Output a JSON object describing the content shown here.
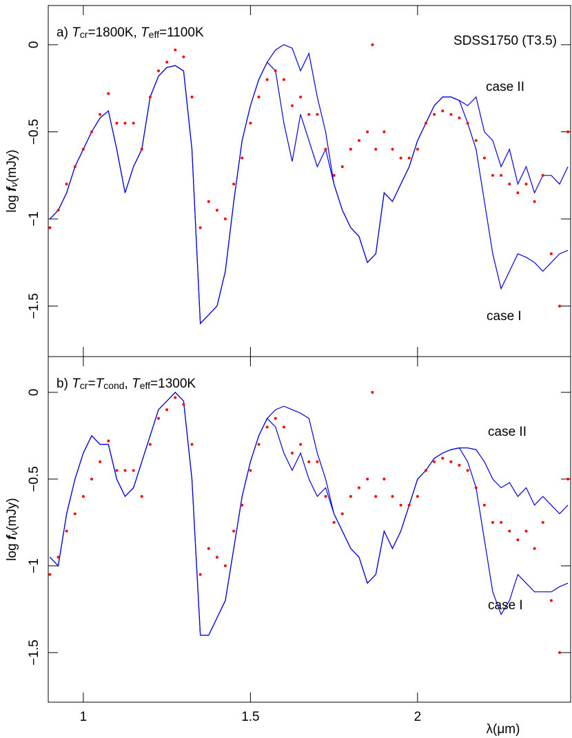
{
  "chart_data": [
    {
      "type": "line",
      "title_parts": [
        {
          "text": "a) "
        },
        {
          "text": "T",
          "style": "italic"
        },
        {
          "text": "cr",
          "style": "sub"
        },
        {
          "text": "=1800K, "
        },
        {
          "text": "T",
          "style": "italic"
        },
        {
          "text": "eff",
          "style": "sub"
        },
        {
          "text": "=1100K"
        }
      ],
      "annotation": "SDSS1750 (T3.5)",
      "ylabel_parts": [
        {
          "text": "log "
        },
        {
          "text": "f",
          "style": "italic-bold"
        },
        {
          "text": "ν",
          "style": "sub-italic"
        },
        {
          "text": "(mJy)"
        }
      ],
      "xlim": [
        0.895,
        2.458
      ],
      "ylim": [
        -1.79,
        0.225
      ],
      "yticks": [
        0,
        {
          "value": -0.5,
          "label": "−0.5"
        },
        {
          "value": -1,
          "label": "−1"
        },
        {
          "value": -1.5,
          "label": "−1.5"
        }
      ],
      "x": [
        0.9,
        0.925,
        0.95,
        0.975,
        1.0,
        1.025,
        1.05,
        1.075,
        1.1,
        1.125,
        1.15,
        1.175,
        1.2,
        1.225,
        1.25,
        1.275,
        1.3,
        1.325,
        1.35,
        1.375,
        1.4,
        1.425,
        1.45,
        1.475,
        1.5,
        1.525,
        1.55,
        1.575,
        1.6,
        1.625,
        1.65,
        1.675,
        1.7,
        1.725,
        1.75,
        1.775,
        1.8,
        1.825,
        1.85,
        1.875,
        1.9,
        1.925,
        1.95,
        1.975,
        2.0,
        2.025,
        2.05,
        2.075,
        2.1,
        2.125,
        2.15,
        2.175,
        2.2,
        2.225,
        2.25,
        2.275,
        2.3,
        2.325,
        2.35,
        2.375,
        2.4,
        2.425,
        2.45
      ],
      "series": [
        {
          "name": "case II",
          "color": "#0000dd",
          "values": [
            -1.0,
            -0.95,
            -0.85,
            -0.7,
            -0.6,
            -0.5,
            -0.42,
            -0.38,
            -0.6,
            -0.85,
            -0.7,
            -0.6,
            -0.3,
            -0.18,
            -0.13,
            -0.12,
            -0.15,
            -0.6,
            -1.6,
            -1.55,
            -1.5,
            -1.3,
            -0.9,
            -0.55,
            -0.35,
            -0.2,
            -0.1,
            -0.03,
            0.0,
            -0.02,
            -0.15,
            -0.05,
            -0.3,
            -0.5,
            -0.8,
            -0.95,
            -1.05,
            -1.1,
            -1.25,
            -1.2,
            -0.85,
            -0.9,
            -0.8,
            -0.7,
            -0.55,
            -0.45,
            -0.35,
            -0.3,
            -0.3,
            -0.32,
            -0.35,
            -0.3,
            -0.5,
            -0.55,
            -0.7,
            -0.6,
            -0.8,
            -0.7,
            -0.85,
            -0.75,
            -0.75,
            -0.8,
            -0.7
          ]
        },
        {
          "name": "case I",
          "color": "#0000dd",
          "values": [
            -1.0,
            -0.95,
            -0.85,
            -0.7,
            -0.6,
            -0.5,
            -0.42,
            -0.38,
            -0.6,
            -0.85,
            -0.7,
            -0.6,
            -0.3,
            -0.18,
            -0.13,
            -0.12,
            -0.15,
            -0.6,
            -1.6,
            -1.55,
            -1.5,
            -1.3,
            -0.9,
            -0.55,
            -0.35,
            -0.2,
            -0.1,
            -0.15,
            -0.45,
            -0.67,
            -0.4,
            -0.55,
            -0.7,
            -0.6,
            -0.8,
            -0.95,
            -1.05,
            -1.1,
            -1.25,
            -1.2,
            -0.85,
            -0.9,
            -0.8,
            -0.7,
            -0.55,
            -0.45,
            -0.35,
            -0.3,
            -0.3,
            -0.32,
            -0.45,
            -0.6,
            -0.9,
            -1.2,
            -1.4,
            -1.3,
            -1.2,
            -1.22,
            -1.25,
            -1.3,
            -1.25,
            -1.2,
            -1.18
          ]
        },
        {
          "color": "#ff0000",
          "marker": "dot",
          "x": [
            0.9,
            0.925,
            0.95,
            0.975,
            1.0,
            1.025,
            1.05,
            1.075,
            1.1,
            1.125,
            1.15,
            1.175,
            1.2,
            1.225,
            1.25,
            1.275,
            1.3,
            1.325,
            1.35,
            1.375,
            1.4,
            1.425,
            1.45,
            1.475,
            1.5,
            1.525,
            1.55,
            1.575,
            1.6,
            1.625,
            1.65,
            1.675,
            1.7,
            1.725,
            1.75,
            1.775,
            1.8,
            1.825,
            1.85,
            1.865,
            1.875,
            1.9,
            1.925,
            1.95,
            1.975,
            2.0,
            2.025,
            2.05,
            2.075,
            2.1,
            2.125,
            2.15,
            2.175,
            2.2,
            2.225,
            2.25,
            2.275,
            2.3,
            2.325,
            2.35,
            2.375,
            2.4,
            2.425,
            2.45
          ],
          "values": [
            -1.05,
            -0.95,
            -0.8,
            -0.7,
            -0.6,
            -0.5,
            -0.4,
            -0.28,
            -0.45,
            -0.45,
            -0.45,
            -0.6,
            -0.3,
            -0.15,
            -0.1,
            -0.03,
            -0.07,
            -0.3,
            -1.05,
            -0.9,
            -0.95,
            -1.0,
            -0.8,
            -0.65,
            -0.45,
            -0.3,
            -0.2,
            -0.15,
            -0.2,
            -0.35,
            -0.3,
            -0.4,
            -0.4,
            -0.6,
            -0.75,
            -0.7,
            -0.6,
            -0.55,
            -0.5,
            0.0,
            -0.6,
            -0.5,
            -0.6,
            -0.65,
            -0.65,
            -0.6,
            -0.45,
            -0.4,
            -0.38,
            -0.4,
            -0.42,
            -0.45,
            -0.55,
            -0.65,
            -0.75,
            -0.75,
            -0.8,
            -0.85,
            -0.8,
            -0.9,
            -0.75,
            -1.2,
            -1.5,
            -0.5
          ]
        }
      ]
    },
    {
      "type": "line",
      "title_parts": [
        {
          "text": "b) "
        },
        {
          "text": "T",
          "style": "italic"
        },
        {
          "text": "cr",
          "style": "sub"
        },
        {
          "text": "="
        },
        {
          "text": "T",
          "style": "italic"
        },
        {
          "text": "cond",
          "style": "sub"
        },
        {
          "text": ", "
        },
        {
          "text": "T",
          "style": "italic"
        },
        {
          "text": "eff",
          "style": "sub"
        },
        {
          "text": "=1300K"
        }
      ],
      "ylabel_parts": [
        {
          "text": "log "
        },
        {
          "text": "f",
          "style": "italic-bold"
        },
        {
          "text": "ν",
          "style": "sub-italic"
        },
        {
          "text": "(mJy)"
        }
      ],
      "xlabel": "λ(μm)",
      "xlim": [
        0.895,
        2.458
      ],
      "ylim": [
        -1.786,
        0.206
      ],
      "xticks": [
        1,
        1.5,
        2
      ],
      "yticks": [
        0,
        {
          "value": -0.5,
          "label": "−0.5"
        },
        {
          "value": -1,
          "label": "−1"
        },
        {
          "value": -1.5,
          "label": "−1.5"
        }
      ],
      "x": [
        0.9,
        0.925,
        0.95,
        0.975,
        1.0,
        1.025,
        1.05,
        1.075,
        1.1,
        1.125,
        1.15,
        1.175,
        1.2,
        1.225,
        1.25,
        1.275,
        1.3,
        1.325,
        1.35,
        1.375,
        1.4,
        1.425,
        1.45,
        1.475,
        1.5,
        1.525,
        1.55,
        1.575,
        1.6,
        1.625,
        1.65,
        1.675,
        1.7,
        1.725,
        1.75,
        1.775,
        1.8,
        1.825,
        1.85,
        1.875,
        1.9,
        1.925,
        1.95,
        1.975,
        2.0,
        2.025,
        2.05,
        2.075,
        2.1,
        2.125,
        2.15,
        2.175,
        2.2,
        2.225,
        2.25,
        2.275,
        2.3,
        2.325,
        2.35,
        2.375,
        2.4,
        2.425,
        2.45
      ],
      "series": [
        {
          "name": "case II",
          "color": "#0000dd",
          "values": [
            -0.95,
            -1.0,
            -0.7,
            -0.5,
            -0.35,
            -0.25,
            -0.3,
            -0.3,
            -0.5,
            -0.6,
            -0.55,
            -0.4,
            -0.25,
            -0.1,
            -0.05,
            0.0,
            -0.05,
            -0.5,
            -1.4,
            -1.4,
            -1.3,
            -1.2,
            -0.9,
            -0.6,
            -0.4,
            -0.25,
            -0.15,
            -0.1,
            -0.08,
            -0.1,
            -0.12,
            -0.15,
            -0.35,
            -0.5,
            -0.7,
            -0.8,
            -0.9,
            -0.95,
            -1.1,
            -1.05,
            -0.8,
            -0.9,
            -0.8,
            -0.65,
            -0.5,
            -0.45,
            -0.38,
            -0.35,
            -0.33,
            -0.32,
            -0.32,
            -0.33,
            -0.4,
            -0.5,
            -0.55,
            -0.52,
            -0.6,
            -0.55,
            -0.65,
            -0.6,
            -0.65,
            -0.7,
            -0.65
          ]
        },
        {
          "name": "case I",
          "color": "#0000dd",
          "values": [
            -0.95,
            -1.0,
            -0.7,
            -0.5,
            -0.35,
            -0.25,
            -0.3,
            -0.3,
            -0.5,
            -0.6,
            -0.55,
            -0.4,
            -0.25,
            -0.1,
            -0.05,
            0.0,
            -0.05,
            -0.5,
            -1.4,
            -1.4,
            -1.3,
            -1.2,
            -0.9,
            -0.6,
            -0.4,
            -0.25,
            -0.15,
            -0.2,
            -0.35,
            -0.45,
            -0.35,
            -0.5,
            -0.6,
            -0.55,
            -0.7,
            -0.8,
            -0.9,
            -0.95,
            -1.1,
            -1.05,
            -0.8,
            -0.9,
            -0.8,
            -0.65,
            -0.5,
            -0.45,
            -0.38,
            -0.35,
            -0.33,
            -0.32,
            -0.4,
            -0.55,
            -0.85,
            -1.15,
            -1.28,
            -1.2,
            -1.05,
            -1.1,
            -1.15,
            -1.15,
            -1.15,
            -1.12,
            -1.1
          ]
        },
        {
          "color": "#ff0000",
          "marker": "dot",
          "x": [
            0.9,
            0.925,
            0.95,
            0.975,
            1.0,
            1.025,
            1.05,
            1.075,
            1.1,
            1.125,
            1.15,
            1.175,
            1.2,
            1.225,
            1.25,
            1.275,
            1.3,
            1.325,
            1.35,
            1.375,
            1.4,
            1.425,
            1.45,
            1.475,
            1.5,
            1.525,
            1.55,
            1.575,
            1.6,
            1.625,
            1.65,
            1.675,
            1.7,
            1.725,
            1.75,
            1.775,
            1.8,
            1.825,
            1.85,
            1.865,
            1.875,
            1.9,
            1.925,
            1.95,
            1.975,
            2.0,
            2.025,
            2.05,
            2.075,
            2.1,
            2.125,
            2.15,
            2.175,
            2.2,
            2.225,
            2.25,
            2.275,
            2.3,
            2.325,
            2.35,
            2.375,
            2.4,
            2.425,
            2.45
          ],
          "values": [
            -1.05,
            -0.95,
            -0.8,
            -0.7,
            -0.6,
            -0.5,
            -0.4,
            -0.28,
            -0.45,
            -0.45,
            -0.45,
            -0.6,
            -0.3,
            -0.15,
            -0.1,
            -0.03,
            -0.07,
            -0.3,
            -1.05,
            -0.9,
            -0.95,
            -1.0,
            -0.8,
            -0.65,
            -0.45,
            -0.3,
            -0.2,
            -0.15,
            -0.2,
            -0.35,
            -0.3,
            -0.4,
            -0.4,
            -0.6,
            -0.75,
            -0.7,
            -0.6,
            -0.55,
            -0.5,
            0.0,
            -0.6,
            -0.5,
            -0.6,
            -0.65,
            -0.65,
            -0.6,
            -0.45,
            -0.4,
            -0.38,
            -0.4,
            -0.42,
            -0.45,
            -0.55,
            -0.65,
            -0.75,
            -0.75,
            -0.8,
            -0.85,
            -0.8,
            -0.9,
            -0.75,
            -1.2,
            -1.5,
            -0.5
          ]
        }
      ]
    }
  ]
}
